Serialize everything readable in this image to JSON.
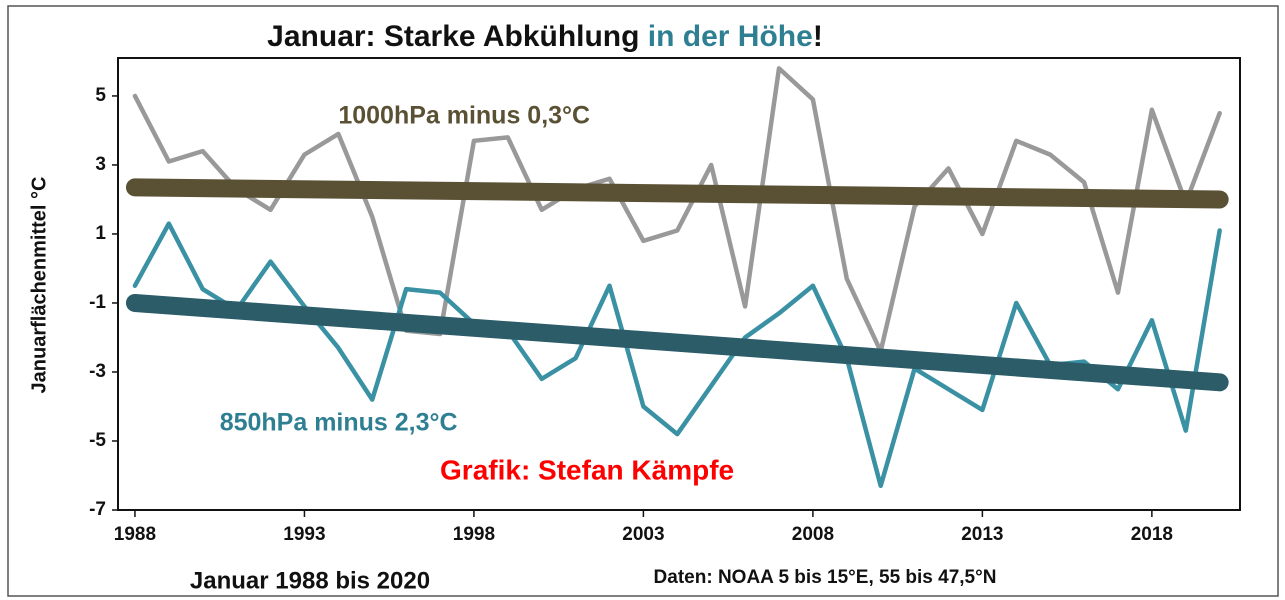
{
  "chart_data": {
    "type": "line",
    "title_parts": [
      {
        "text": "Januar: Starke Abkühlung ",
        "color": "#111111"
      },
      {
        "text": "in der Höhe",
        "color": "#2f7f93"
      },
      {
        "text": "!",
        "color": "#111111"
      }
    ],
    "ylabel": "Januarflächenmittel °C",
    "xlabel": "Januar 1988 bis 2020",
    "source": "Daten: NOAA 5 bis 15°E, 55 bis 47,5°N",
    "annotations": [
      {
        "text": "1000hPa minus 0,3°C",
        "color": "#5a5034",
        "x": 1994,
        "y": 4.4
      },
      {
        "text": "850hPa minus 2,3°C",
        "color": "#2f7f93",
        "x": 1990.5,
        "y": -4.5
      },
      {
        "text": "Grafik: Stefan Kämpfe",
        "color": "#ff0000",
        "x": 1997,
        "y": -5.9
      }
    ],
    "x": [
      1988,
      1989,
      1990,
      1991,
      1992,
      1993,
      1994,
      1995,
      1996,
      1997,
      1998,
      1999,
      2000,
      2001,
      2002,
      2003,
      2004,
      2005,
      2006,
      2007,
      2008,
      2009,
      2010,
      2011,
      2012,
      2013,
      2014,
      2015,
      2016,
      2017,
      2018,
      2019,
      2020
    ],
    "series": [
      {
        "color": "#999999",
        "values": [
          5.0,
          3.1,
          3.4,
          2.3,
          1.7,
          3.3,
          3.9,
          1.5,
          -1.8,
          -1.9,
          3.7,
          3.8,
          1.7,
          2.3,
          2.6,
          0.8,
          1.1,
          3.0,
          -1.1,
          5.8,
          4.9,
          -0.3,
          -2.4,
          1.8,
          2.9,
          1.0,
          3.7,
          3.3,
          2.5,
          -0.7,
          4.6,
          1.9,
          4.5
        ]
      },
      {
        "color": "#3a91a4",
        "values": [
          -0.5,
          1.3,
          -0.6,
          -1.2,
          0.2,
          -1.1,
          -2.3,
          -3.8,
          -0.6,
          -0.7,
          -1.6,
          -1.8,
          -3.2,
          -2.6,
          -0.5,
          -4.0,
          -4.8,
          -3.4,
          -2.0,
          -1.3,
          -0.5,
          -2.6,
          -6.3,
          -2.9,
          -3.5,
          -4.1,
          -1.0,
          -2.8,
          -2.7,
          -3.5,
          -1.5,
          -4.7,
          1.1
        ]
      }
    ],
    "trendlines": [
      {
        "color": "#5a5034",
        "x": [
          1988,
          2020
        ],
        "values": [
          2.35,
          2.0
        ]
      },
      {
        "color": "#2b5c68",
        "x": [
          1988,
          2020
        ],
        "values": [
          -1.0,
          -3.3
        ]
      }
    ],
    "xlim": [
      1987.5,
      2020.6
    ],
    "ylim": [
      -7,
      6.1
    ],
    "xticks": [
      1988,
      1993,
      1998,
      2003,
      2008,
      2013,
      2018
    ],
    "yticks": [
      -7,
      -5,
      -3,
      -1,
      1,
      3,
      5
    ]
  }
}
